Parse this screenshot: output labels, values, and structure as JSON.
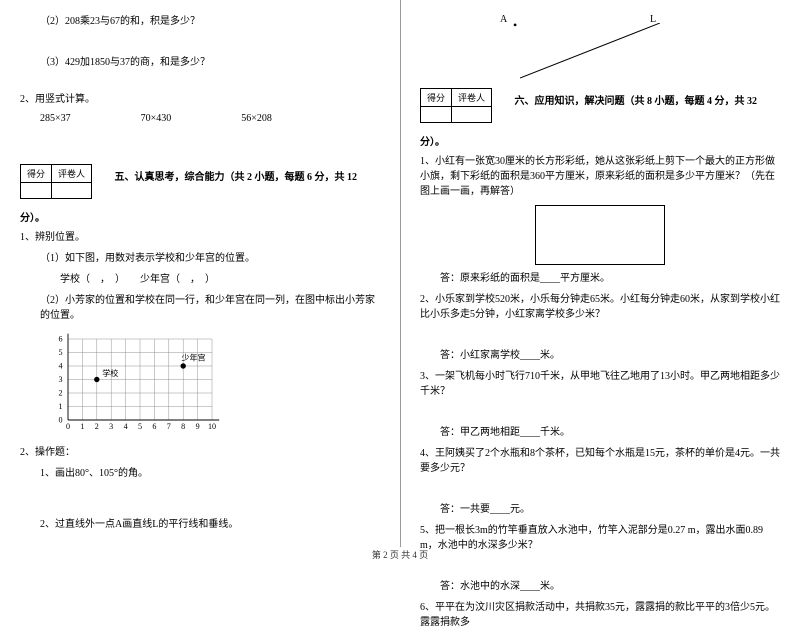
{
  "left": {
    "q1_2": "（2）208乘23与67的和，积是多少？",
    "q1_3": "（3）429加1850与37的商，和是多少？",
    "q2": "2、用竖式计算。",
    "calc1": "285×37",
    "calc2": "70×430",
    "calc3": "56×208",
    "scoreLabels": {
      "score": "得分",
      "reviewer": "评卷人"
    },
    "section5": "五、认真思考，综合能力（共 2 小题，每题 6 分，共 12",
    "section5_end": "分）。",
    "p1": "1、辨别位置。",
    "p1_1": "（1）如下图，用数对表示学校和少年宫的位置。",
    "p1_1b": "学校（　，　）　　少年宫（　，　）",
    "p1_2": "（2）小芳家的位置和学校在同一行，和少年宫在同一列，在图中标出小芳家的位置。",
    "chart": {
      "xTicks": [
        0,
        1,
        2,
        3,
        4,
        5,
        6,
        7,
        8,
        9,
        10
      ],
      "yTicks": [
        0,
        1,
        2,
        3,
        4,
        5,
        6
      ],
      "labels": {
        "school": "学校",
        "palace": "少年宫"
      },
      "schoolPos": [
        2,
        3
      ],
      "palacePos": [
        8,
        4
      ],
      "gridColor": "#888",
      "dotColor": "#000",
      "fontSize": 9
    },
    "p2": "2、操作题：",
    "p2_1": "1、画出80°、105°的角。",
    "p2_2": "2、过直线外一点A画直线L的平行线和垂线。"
  },
  "right": {
    "pointA": "A",
    "lineL": "L",
    "scoreLabels": {
      "score": "得分",
      "reviewer": "评卷人"
    },
    "section6": "六、应用知识，解决问题（共 8 小题，每题 4 分，共 32",
    "section6_end": "分）。",
    "q1": "1、小红有一张宽30厘米的长方形彩纸，她从这张彩纸上剪下一个最大的正方形做小旗，剩下彩纸的面积是360平方厘米，原来彩纸的面积是多少平方厘米？（先在图上画一画，再解答）",
    "a1": "答：原来彩纸的面积是____平方厘米。",
    "q2": "2、小乐家到学校520米，小乐每分钟走65米。小红每分钟走60米，从家到学校小红比小乐多走5分钟，小红家离学校多少米？",
    "a2": "答：小红家离学校____米。",
    "q3": "3、一架飞机每小时飞行710千米，从甲地飞往乙地用了13小时。甲乙两地相距多少千米？",
    "a3": "答：甲乙两地相距____千米。",
    "q4": "4、王阿姨买了2个水瓶和8个茶杯，已知每个水瓶是15元，茶杯的单价是4元。一共要多少元？",
    "a4": "答：一共要____元。",
    "q5": "5、把一根长3m的竹竿垂直放入水池中，竹竿入泥部分是0.27 m，露出水面0.89 m，水池中的水深多少米？",
    "a5": "答：水池中的水深____米。",
    "q6": "6、平平在为汶川灾区捐款活动中，共捐款35元，露露捐的款比平平的3倍少5元。露露捐款多"
  },
  "footer": "第 2 页 共 4 页"
}
